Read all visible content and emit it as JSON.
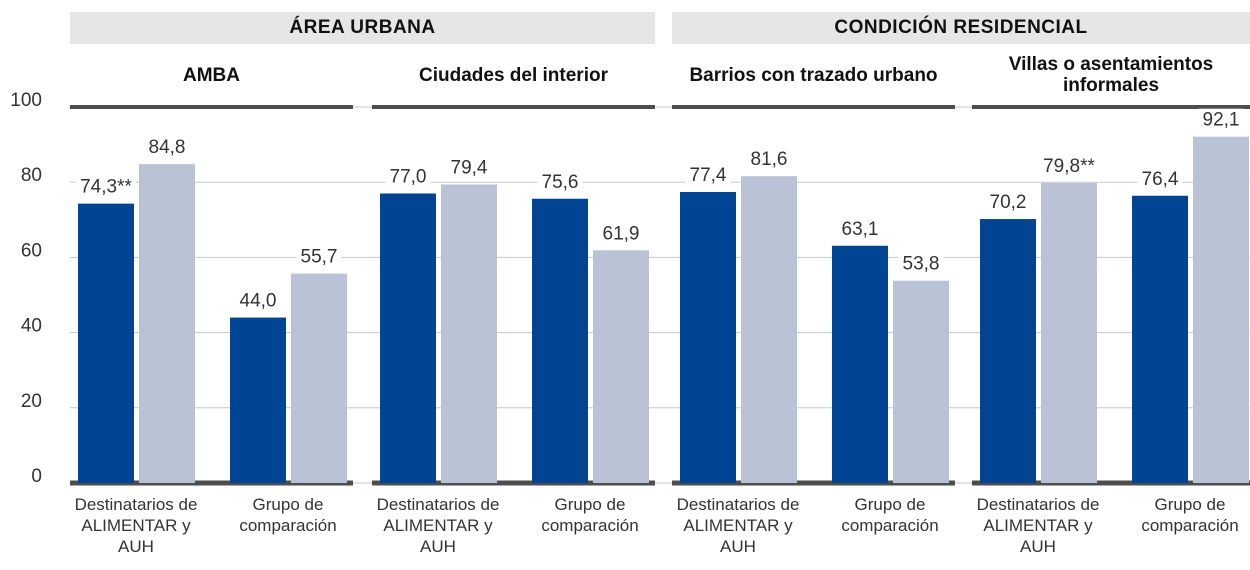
{
  "chart_data": {
    "type": "bar",
    "ylim": [
      0,
      100
    ],
    "yticks": [
      0,
      20,
      40,
      60,
      80,
      100
    ],
    "grid": true,
    "groups": [
      {
        "title": "ÁREA URBANA",
        "panels": [
          {
            "title": "AMBA",
            "categories": [
              "Destinatarios de ALIMENTAR y AUH",
              "Grupo de comparación"
            ],
            "series": [
              {
                "color": "#004494",
                "values": [
                  74.3,
                  44.0
                ],
                "value_labels": [
                  "74,3**",
                  "44,0"
                ]
              },
              {
                "color": "#b9c3d5",
                "values": [
                  84.8,
                  55.7
                ],
                "value_labels": [
                  "84,8",
                  "55,7"
                ]
              }
            ]
          },
          {
            "title": "Ciudades del interior",
            "categories": [
              "Destinatarios de ALIMENTAR y AUH",
              "Grupo de comparación"
            ],
            "series": [
              {
                "color": "#004494",
                "values": [
                  77.0,
                  75.6
                ],
                "value_labels": [
                  "77,0",
                  "75,6"
                ]
              },
              {
                "color": "#b9c3d5",
                "values": [
                  79.4,
                  61.9
                ],
                "value_labels": [
                  "79,4",
                  "61,9"
                ]
              }
            ]
          }
        ]
      },
      {
        "title": "CONDICIÓN RESIDENCIAL",
        "panels": [
          {
            "title": "Barrios con trazado urbano",
            "categories": [
              "Destinatarios de ALIMENTAR y AUH",
              "Grupo de comparación"
            ],
            "series": [
              {
                "color": "#004494",
                "values": [
                  77.4,
                  63.1
                ],
                "value_labels": [
                  "77,4",
                  "63,1"
                ]
              },
              {
                "color": "#b9c3d5",
                "values": [
                  81.6,
                  53.8
                ],
                "value_labels": [
                  "81,6",
                  "53,8"
                ]
              }
            ]
          },
          {
            "title": "Villas o asentamientos informales",
            "categories": [
              "Destinatarios de ALIMENTAR y AUH",
              "Grupo de comparación"
            ],
            "series": [
              {
                "color": "#004494",
                "values": [
                  70.2,
                  76.4
                ],
                "value_labels": [
                  "70,2",
                  "76,4"
                ]
              },
              {
                "color": "#b9c3d5",
                "values": [
                  79.8,
                  92.1
                ],
                "value_labels": [
                  "79,8**",
                  "92,1"
                ]
              }
            ]
          }
        ]
      }
    ]
  }
}
